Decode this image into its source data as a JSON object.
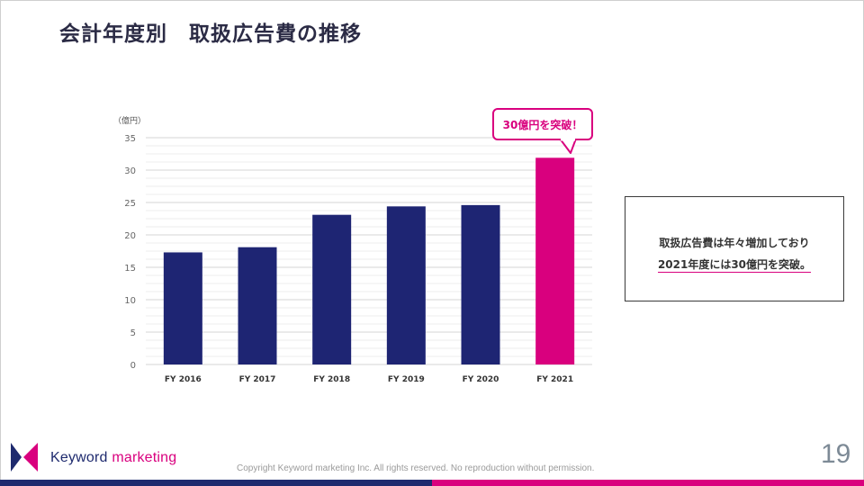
{
  "slide": {
    "title": "会計年度別　取扱広告費の推移",
    "page_number": "19"
  },
  "chart_data": {
    "type": "bar",
    "unit_label": "（億円）",
    "categories": [
      "FY 2016",
      "FY 2017",
      "FY 2018",
      "FY 2019",
      "FY 2020",
      "FY 2021"
    ],
    "values": [
      17.3,
      18.1,
      23.1,
      24.4,
      24.6,
      31.9
    ],
    "ylim": [
      0,
      35
    ],
    "yticks": [
      0,
      5,
      10,
      15,
      20,
      25,
      30,
      35
    ],
    "grid": true,
    "colors": {
      "default": "#1e2573",
      "highlight": "#d9007e"
    },
    "highlight_index": 5,
    "annotation": "30億円を突破！"
  },
  "summary": {
    "line1": "取扱広告費は年々増加しており",
    "line2": "2021年度には30億円を突破。"
  },
  "footer": {
    "brand_keyword": "Keyword",
    "brand_marketing": "marketing",
    "copyright": "Copyright Keyword marketing Inc. All rights reserved. No reproduction without permission."
  },
  "colors": {
    "navy": "#1e2a6e",
    "magenta": "#d9007e"
  }
}
